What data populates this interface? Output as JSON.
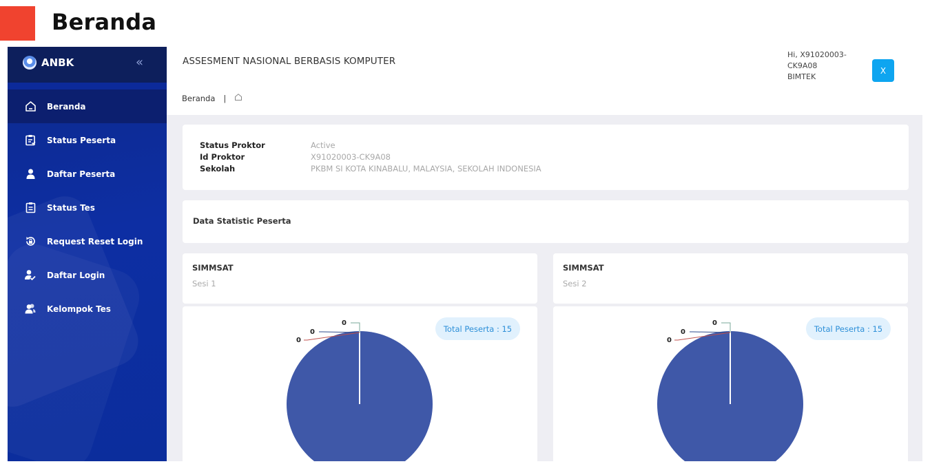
{
  "slide": {
    "title": "Beranda",
    "accent_color": "#f0432f"
  },
  "sidebar": {
    "logo_text": "ANBK",
    "collapse_icon": "double-chevron-left-icon",
    "items": [
      {
        "label": "Beranda",
        "icon": "home-icon",
        "active": true
      },
      {
        "label": "Status Peserta",
        "icon": "clipboard-check-icon",
        "active": false
      },
      {
        "label": "Daftar Peserta",
        "icon": "user-icon",
        "active": false
      },
      {
        "label": "Status Tes",
        "icon": "clipboard-list-icon",
        "active": false
      },
      {
        "label": "Request Reset Login",
        "icon": "reset-icon",
        "active": false
      },
      {
        "label": "Daftar Login",
        "icon": "user-check-icon",
        "active": false
      },
      {
        "label": "Kelompok Tes",
        "icon": "users-icon",
        "active": false
      }
    ]
  },
  "header": {
    "title": "ASSESMENT NASIONAL BERBASIS KOMPUTER",
    "breadcrumb": {
      "label": "Beranda",
      "separator": "|",
      "icon": "home-outline-icon"
    },
    "user": {
      "greeting": "Hi, X91020003-CK9A08",
      "role": "BIMTEK",
      "avatar_letter": "X",
      "avatar_color": "#0ea5f0"
    }
  },
  "info": {
    "rows": [
      {
        "key": "Status Proktor",
        "value": "Active"
      },
      {
        "key": "Id Proktor",
        "value": "X91020003-CK9A08"
      },
      {
        "key": "Sekolah",
        "value": "PKBM SI KOTA KINABALU, MALAYSIA, SEKOLAH INDONESIA"
      }
    ]
  },
  "stats": {
    "title": "Data Statistic Peserta"
  },
  "sessions": [
    {
      "title": "SIMMSAT",
      "subtitle": "Sesi 1",
      "total_label": "Total Peserta : 15"
    },
    {
      "title": "SIMMSAT",
      "subtitle": "Sesi 2",
      "total_label": "Total Peserta : 15"
    }
  ],
  "chart_data": [
    {
      "type": "pie",
      "title": "",
      "slices": [
        {
          "value": 15,
          "color": "#3f58a8",
          "label": ""
        },
        {
          "value": 0,
          "color": "#7aa89a",
          "label": "0"
        },
        {
          "value": 0,
          "color": "#2d4a8c",
          "label": "0"
        },
        {
          "value": 0,
          "color": "#c0504d",
          "label": "0"
        }
      ]
    },
    {
      "type": "pie",
      "title": "",
      "slices": [
        {
          "value": 15,
          "color": "#3f58a8",
          "label": ""
        },
        {
          "value": 0,
          "color": "#7aa89a",
          "label": "0"
        },
        {
          "value": 0,
          "color": "#2d4a8c",
          "label": "0"
        },
        {
          "value": 0,
          "color": "#c0504d",
          "label": "0"
        }
      ]
    }
  ]
}
